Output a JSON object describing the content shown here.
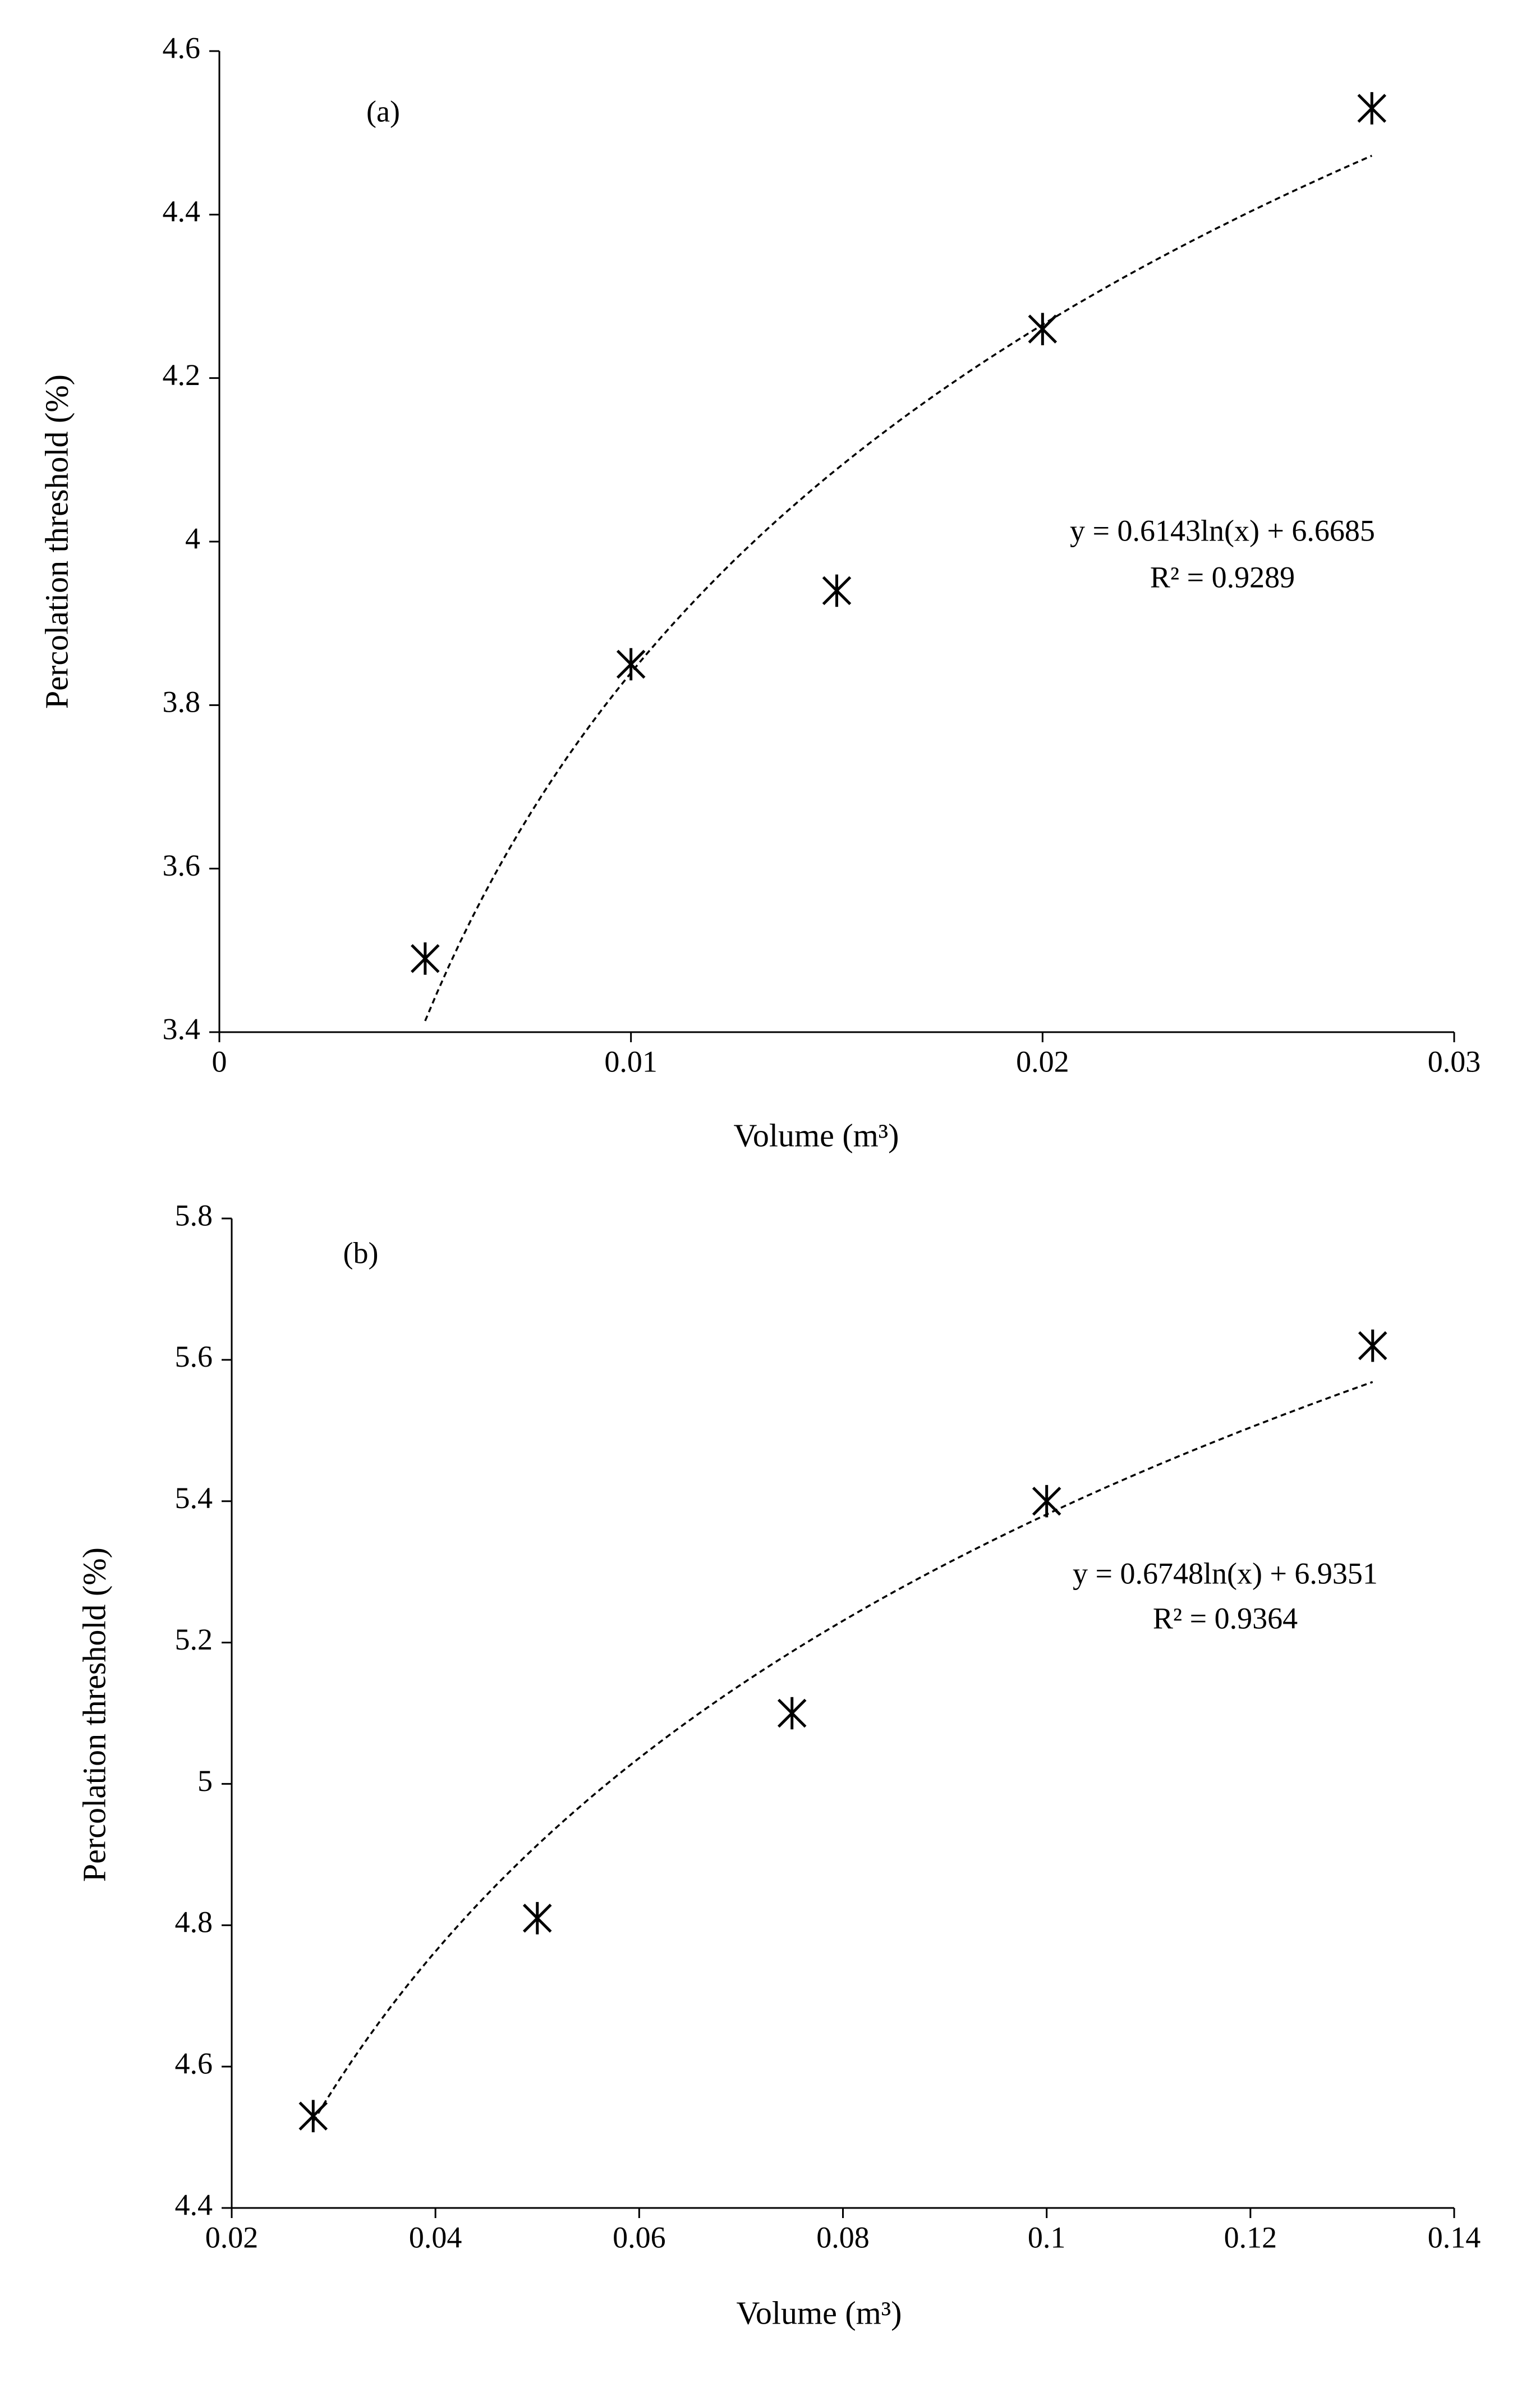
{
  "chart_data": [
    {
      "type": "scatter",
      "panel_label": "(a)",
      "x_label": "Volume (m³)",
      "y_label": "Percolation threshold (%)",
      "x": [
        0.005,
        0.01,
        0.015,
        0.02,
        0.028
      ],
      "values": [
        3.49,
        3.85,
        3.94,
        4.26,
        4.53
      ],
      "color": "#000000",
      "xlim": [
        0,
        0.03
      ],
      "xticks": [
        0,
        0.01,
        0.02,
        0.03
      ],
      "ylim": [
        3.4,
        4.6
      ],
      "yticks": [
        3.4,
        3.6,
        3.8,
        4,
        4.2,
        4.4,
        4.6
      ],
      "trendline": {
        "kind": "log",
        "coef": 0.6143,
        "intercept": 6.6685,
        "equation": "y = 0.6143ln(x) + 6.6685",
        "r2": "R² = 0.9289"
      }
    },
    {
      "type": "scatter",
      "panel_label": "(b)",
      "x_label": "Volume (m³)",
      "y_label": "Percolation threshold (%)",
      "x": [
        0.028,
        0.05,
        0.075,
        0.1,
        0.132
      ],
      "values": [
        4.53,
        4.81,
        5.1,
        5.4,
        5.62
      ],
      "color": "#000000",
      "xlim": [
        0.02,
        0.14
      ],
      "xticks": [
        0.02,
        0.04,
        0.06,
        0.08,
        0.1,
        0.12,
        0.14
      ],
      "ylim": [
        4.4,
        5.8
      ],
      "yticks": [
        4.4,
        4.6,
        4.8,
        5,
        5.2,
        5.4,
        5.6,
        5.8
      ],
      "trendline": {
        "kind": "log",
        "coef": 0.6748,
        "intercept": 6.9351,
        "equation": "y = 0.6748ln(x) + 6.9351",
        "r2": "R² = 0.9364"
      }
    }
  ]
}
